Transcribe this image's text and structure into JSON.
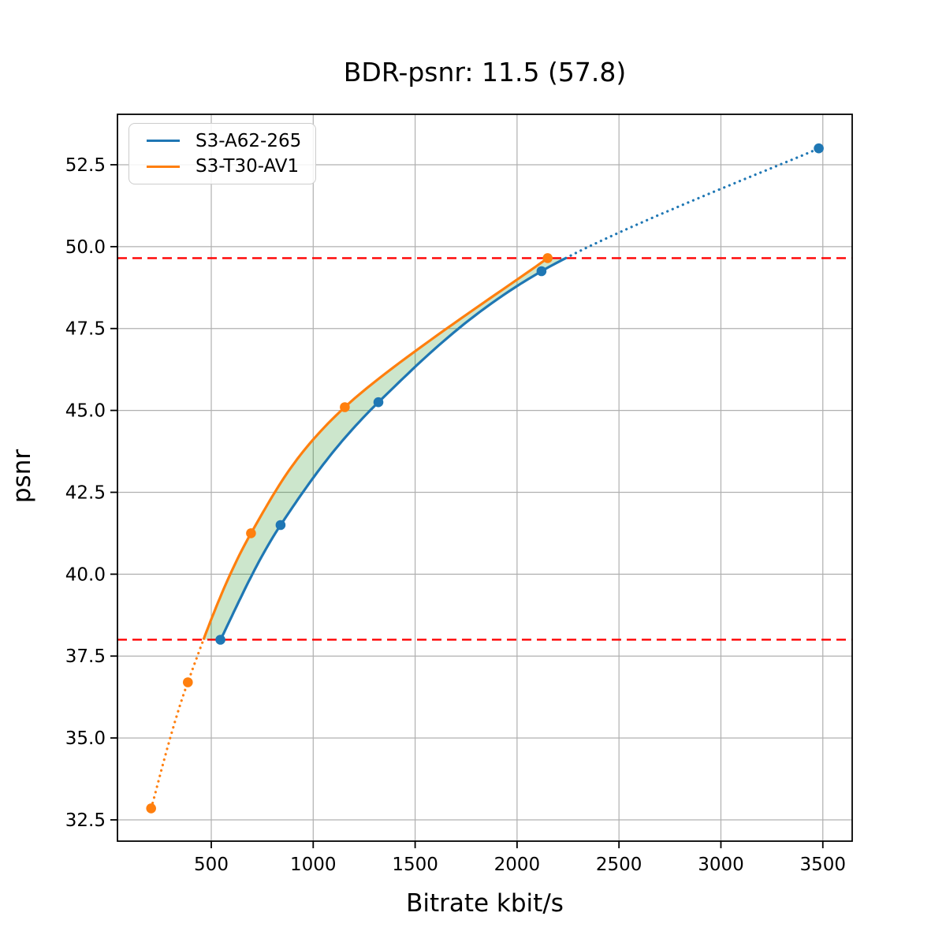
{
  "figure": {
    "background": "#ffffff"
  },
  "chart_data": {
    "type": "line",
    "title": "BDR-psnr: 11.5 (57.8)",
    "xlabel": "Bitrate kbit/s",
    "ylabel": "psnr",
    "xlim": [
      39.8,
      3644
    ],
    "ylim": [
      31.85,
      54.04
    ],
    "xticks": [
      "500",
      "1000",
      "1500",
      "2000",
      "2500",
      "3000",
      "3500"
    ],
    "yticks": [
      "32.5",
      "35.0",
      "37.5",
      "40.0",
      "42.5",
      "45.0",
      "47.5",
      "50.0",
      "52.5"
    ],
    "grid": true,
    "grid_color": "#b0b0b0",
    "legend_position": "upper-left",
    "series": [
      {
        "name": "S3-A62-265",
        "color": "#1f77b4",
        "marker": "circle",
        "points": [
          [
            545,
            38.0
          ],
          [
            840,
            41.5
          ],
          [
            1320,
            45.25
          ],
          [
            2120,
            49.25
          ],
          [
            3480,
            53.0
          ]
        ]
      },
      {
        "name": "S3-T30-AV1",
        "color": "#ff7f0e",
        "marker": "circle",
        "points": [
          [
            205,
            32.85
          ],
          [
            385,
            36.7
          ],
          [
            695,
            41.25
          ],
          [
            1155,
            45.1
          ],
          [
            2150,
            49.65
          ]
        ]
      }
    ],
    "hlines": {
      "values": [
        38.0,
        49.65
      ],
      "color": "#ff0000",
      "style": "dashed"
    },
    "fill_between": {
      "color": "#008000",
      "alpha": 0.2
    },
    "line_style_note": "curves solid inside psnr overlap range [38.0, 49.65], dotted outside"
  }
}
